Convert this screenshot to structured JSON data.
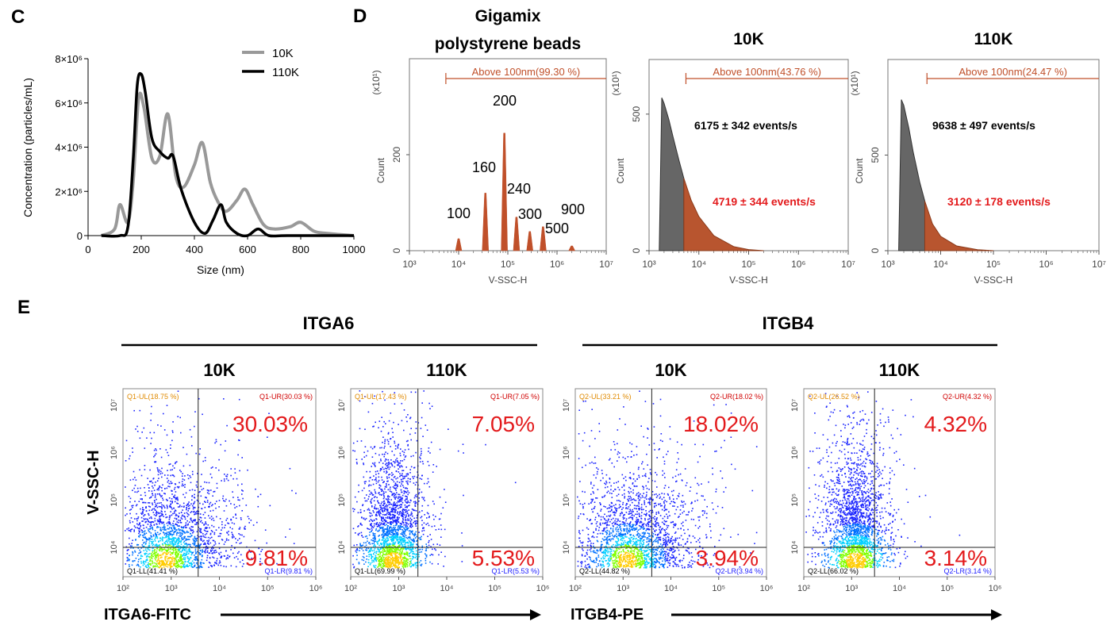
{
  "panels": {
    "C": {
      "letter": "C",
      "ylabel": "Concentration (particles/mL)",
      "xlabel": "Size (nm)",
      "xticks": [
        "0",
        "200",
        "400",
        "600",
        "800",
        "1000"
      ],
      "yticks": [
        "0",
        "2×10⁶",
        "4×10⁶",
        "6×10⁶",
        "8×10⁶"
      ],
      "legend": [
        "10K",
        "110K"
      ]
    },
    "D": {
      "letter": "D",
      "ylabel": "Count",
      "xlabel": "V-SSC-H",
      "xticks": [
        "10³",
        "10⁴",
        "10⁵",
        "10⁶",
        "10⁷"
      ],
      "scale": "(x10¹)",
      "subpanels": [
        {
          "title_line1": "Gigamix",
          "title_line2": "polystyrene beads",
          "gate": "Above 100nm(99.30 %)",
          "yticks": [
            "0",
            "200"
          ],
          "peak_labels": [
            "100",
            "160",
            "200",
            "240",
            "300",
            "500",
            "900"
          ]
        },
        {
          "title_line1": "10K",
          "gate": "Above 100nm(43.76 %)",
          "yticks": [
            "0",
            "500"
          ],
          "events_total": "6175 ± 342 events/s",
          "events_above": "4719 ± 344 events/s"
        },
        {
          "title_line1": "110K",
          "gate": "Above 100nm(24.47 %)",
          "yticks": [
            "0",
            "500"
          ],
          "events_total": "9638 ± 497 events/s",
          "events_above": "3120 ± 178 events/s"
        }
      ]
    },
    "E": {
      "letter": "E",
      "groups": [
        "ITGA6",
        "ITGB4"
      ],
      "ylabel": "V-SSC-H",
      "xlabel_left": "ITGA6-FITC",
      "xlabel_right": "ITGB4-PE",
      "xticks": [
        "10²",
        "10³",
        "10⁴",
        "10⁵",
        "10⁶"
      ],
      "yticks": [
        "10⁴",
        "10⁵",
        "10⁶",
        "10⁷"
      ],
      "plots": [
        {
          "title": "10K",
          "ul": "Q1-UL(18.75 %)",
          "ur": "Q1-UR(30.03 %)",
          "ll": "Q1-LL(41.41 %)",
          "lr": "Q1-LR(9.81 %)",
          "big_ur": "30.03%",
          "big_lr": "9.81%"
        },
        {
          "title": "110K",
          "ul": "Q1-UL(17.43 %)",
          "ur": "Q1-UR(7.05 %)",
          "ll": "Q1-LL(69.99 %)",
          "lr": "Q1-LR(5.53 %)",
          "big_ur": "7.05%",
          "big_lr": "5.53%"
        },
        {
          "title": "10K",
          "ul": "Q2-UL(33.21 %)",
          "ur": "Q2-UR(18.02 %)",
          "ll": "Q2-LL(44.82 %)",
          "lr": "Q2-LR(3.94 %)",
          "big_ur": "18.02%",
          "big_lr": "3.94%"
        },
        {
          "title": "110K",
          "ul": "Q2-UL(26.52 %)",
          "ur": "Q2-UR(4.32 %)",
          "ll": "Q2-LL(66.02 %)",
          "lr": "Q2-LR(3.14 %)",
          "big_ur": "4.32%",
          "big_lr": "3.14%"
        }
      ]
    }
  },
  "colors": {
    "gray": "#999999",
    "black": "#000000",
    "orange": "#c0502a",
    "red": "#e31a1c",
    "dark_gray": "#666666"
  },
  "chart_data": [
    {
      "type": "line",
      "panel": "C",
      "xlabel": "Size (nm)",
      "ylabel": "Concentration (particles/mL)",
      "xlim": [
        0,
        1000
      ],
      "ylim": [
        0,
        8000000
      ],
      "series": [
        {
          "name": "10K",
          "x": [
            50,
            100,
            120,
            150,
            170,
            190,
            210,
            240,
            270,
            300,
            330,
            360,
            400,
            430,
            460,
            490,
            520,
            560,
            590,
            620,
            660,
            700,
            760,
            800,
            850,
            900,
            1000
          ],
          "y": [
            0,
            300000,
            1400000,
            600000,
            2500000,
            6200000,
            5800000,
            3500000,
            3600000,
            5500000,
            2700000,
            2200000,
            3200000,
            4200000,
            2400000,
            1500000,
            1100000,
            1600000,
            2100000,
            1400000,
            500000,
            300000,
            400000,
            600000,
            200000,
            100000,
            0
          ]
        },
        {
          "name": "110K",
          "x": [
            50,
            120,
            150,
            170,
            185,
            200,
            215,
            240,
            270,
            300,
            320,
            350,
            400,
            440,
            470,
            500,
            520,
            560,
            600,
            640,
            680,
            750,
            1000
          ],
          "y": [
            0,
            0,
            400000,
            3500000,
            6800000,
            7300000,
            6500000,
            4400000,
            3800000,
            3500000,
            3600000,
            2100000,
            600000,
            100000,
            700000,
            1400000,
            600000,
            100000,
            0,
            300000,
            0,
            0,
            0
          ]
        }
      ]
    },
    {
      "type": "bar",
      "panel": "D",
      "title": "Gigamix polystyrene beads",
      "xlabel": "V-SSC-H",
      "ylabel": "Count",
      "x_scale": "log",
      "xlim": [
        1000,
        10000000
      ],
      "ylim": [
        0,
        400
      ],
      "categories": [
        "100",
        "160",
        "200",
        "240",
        "300",
        "500",
        "900"
      ],
      "peak_positions": [
        10000,
        35000,
        85000,
        150000,
        280000,
        520000,
        2000000
      ],
      "values": [
        25,
        120,
        245,
        70,
        40,
        50,
        10
      ]
    },
    {
      "type": "area",
      "panel": "D",
      "title": "10K",
      "xlabel": "V-SSC-H",
      "ylabel": "Count",
      "x_scale": "log",
      "xlim": [
        1000,
        10000000
      ],
      "ylim": [
        0,
        700
      ],
      "x": [
        1600,
        1800,
        2000,
        2500,
        3000,
        4000,
        5000,
        7000,
        10000,
        20000,
        50000,
        100000,
        200000
      ],
      "y": [
        0,
        560,
        540,
        480,
        420,
        330,
        265,
        185,
        125,
        55,
        15,
        4,
        0
      ],
      "gate_threshold": 5000
    },
    {
      "type": "area",
      "panel": "D",
      "title": "110K",
      "xlabel": "V-SSC-H",
      "ylabel": "Count",
      "x_scale": "log",
      "xlim": [
        1000,
        10000000
      ],
      "ylim": [
        0,
        1000
      ],
      "x": [
        1600,
        1800,
        2000,
        2500,
        3000,
        4000,
        5000,
        7000,
        10000,
        20000,
        50000,
        100000
      ],
      "y": [
        0,
        790,
        760,
        640,
        520,
        360,
        260,
        140,
        75,
        25,
        5,
        0
      ],
      "gate_threshold": 5000
    }
  ]
}
